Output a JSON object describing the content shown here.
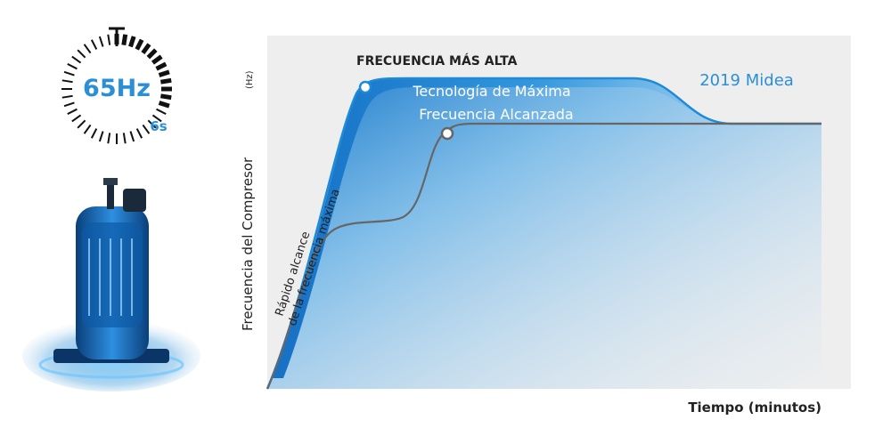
{
  "timer": {
    "frequency_label": "65Hz",
    "time_label": "6s",
    "accent_color": "#2a8fd6",
    "icon": "stopwatch-icon"
  },
  "compressor": {
    "icon": "compressor-icon"
  },
  "chart_data": {
    "type": "area",
    "ylabel": "Frecuencia del Compresor",
    "ylabel_unit": "(Hz)",
    "xlabel": "Tiempo (minutos)",
    "grid": false,
    "series": [
      {
        "name": "2019 Midea",
        "color": "#1e8ad8",
        "fill": "gradient-blue"
      }
    ],
    "annotations": {
      "peak": "FRECUENCIA MÁS ALTA",
      "tech_line1": "Tecnología de Máxima",
      "tech_line2": "Frecuencia Alcanzada",
      "rise_line1": "Rápido alcance",
      "rise_line2": "de la frecuencia máxima"
    },
    "colors": {
      "plot_background": "#eeeeee",
      "midea_curve": "#1e8ad8",
      "other_curve": "#666666",
      "accent_text": "#2a8fd6"
    }
  }
}
